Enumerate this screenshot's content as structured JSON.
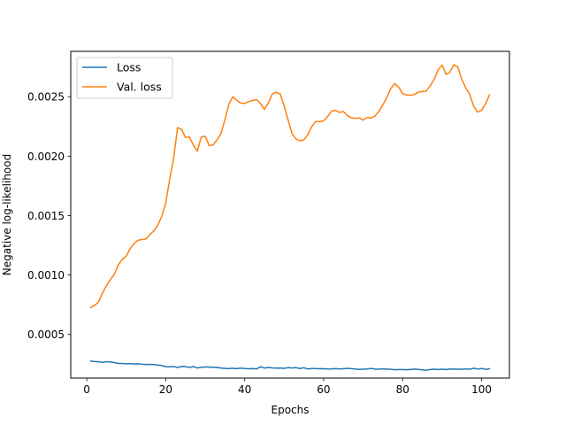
{
  "chart_data": {
    "type": "line",
    "title": "",
    "xlabel": "Epochs",
    "ylabel": "Negative log-likelihood",
    "xlim": [
      -4.05,
      107.05
    ],
    "ylim": [
      0.000133,
      0.002881
    ],
    "xticks": [
      0,
      20,
      40,
      60,
      80,
      100
    ],
    "xtick_labels": [
      "0",
      "20",
      "40",
      "60",
      "80",
      "100"
    ],
    "yticks": [
      0.0005,
      0.001,
      0.0015,
      0.002,
      0.0025
    ],
    "ytick_labels": [
      "0.0005",
      "0.0010",
      "0.0015",
      "0.0020",
      "0.0025"
    ],
    "grid": false,
    "legend_position": "upper-left",
    "x": [
      1,
      2,
      3,
      4,
      5,
      6,
      7,
      8,
      9,
      10,
      11,
      12,
      13,
      14,
      15,
      16,
      17,
      18,
      19,
      20,
      21,
      22,
      23,
      24,
      25,
      26,
      27,
      28,
      29,
      30,
      31,
      32,
      33,
      34,
      35,
      36,
      37,
      38,
      39,
      40,
      41,
      42,
      43,
      44,
      45,
      46,
      47,
      48,
      49,
      50,
      51,
      52,
      53,
      54,
      55,
      56,
      57,
      58,
      59,
      60,
      61,
      62,
      63,
      64,
      65,
      66,
      67,
      68,
      69,
      70,
      71,
      72,
      73,
      74,
      75,
      76,
      77,
      78,
      79,
      80,
      81,
      82,
      83,
      84,
      85,
      86,
      87,
      88,
      89,
      90,
      91,
      92,
      93,
      94,
      95,
      96,
      97,
      98,
      99,
      100,
      101,
      102
    ],
    "series": [
      {
        "name": "Loss",
        "color": "#1f77b4",
        "values": [
          0.000276,
          0.000272,
          0.00027,
          0.000265,
          0.000271,
          0.000268,
          0.000263,
          0.000256,
          0.000256,
          0.000252,
          0.000255,
          0.000251,
          0.000253,
          0.000249,
          0.000247,
          0.000248,
          0.000247,
          0.000243,
          0.000238,
          0.000229,
          0.000228,
          0.00023,
          0.000222,
          0.000231,
          0.00023,
          0.000222,
          0.00023,
          0.000218,
          0.000223,
          0.000227,
          0.000225,
          0.000223,
          0.000223,
          0.000217,
          0.000215,
          0.000212,
          0.000216,
          0.000212,
          0.000217,
          0.000213,
          0.000211,
          0.000213,
          0.000209,
          0.000228,
          0.000217,
          0.000222,
          0.000219,
          0.000217,
          0.000218,
          0.000215,
          0.000221,
          0.000218,
          0.000221,
          0.000213,
          0.00022,
          0.000209,
          0.000213,
          0.000213,
          0.000211,
          0.000212,
          0.000209,
          0.00021,
          0.000212,
          0.000209,
          0.000212,
          0.000215,
          0.000212,
          0.000209,
          0.000206,
          0.000208,
          0.000209,
          0.000214,
          0.000208,
          0.000207,
          0.00021,
          0.000208,
          0.000207,
          0.000203,
          0.000205,
          0.000205,
          0.000203,
          0.000206,
          0.000208,
          0.000206,
          0.000202,
          0.000199,
          0.000205,
          0.000207,
          0.000205,
          0.000207,
          0.000205,
          0.000209,
          0.000208,
          0.000207,
          0.000207,
          0.00021,
          0.000207,
          0.000216,
          0.000208,
          0.000214,
          0.000206,
          0.000212
        ]
      },
      {
        "name": "Val. loss",
        "color": "#ff7f0e",
        "values": [
          0.000726,
          0.000745,
          0.000772,
          0.00085,
          0.00091,
          0.000962,
          0.001007,
          0.001085,
          0.001131,
          0.001158,
          0.001223,
          0.001265,
          0.001293,
          0.001298,
          0.001303,
          0.00134,
          0.001372,
          0.001419,
          0.001494,
          0.001603,
          0.001804,
          0.001981,
          0.002239,
          0.002226,
          0.002156,
          0.002161,
          0.002093,
          0.002042,
          0.00216,
          0.002167,
          0.002089,
          0.002094,
          0.002137,
          0.00219,
          0.002306,
          0.002437,
          0.002499,
          0.002469,
          0.002446,
          0.002443,
          0.002459,
          0.002468,
          0.002475,
          0.002442,
          0.002393,
          0.002447,
          0.002523,
          0.002538,
          0.002521,
          0.002424,
          0.002303,
          0.002188,
          0.002144,
          0.002128,
          0.002137,
          0.002179,
          0.002249,
          0.002291,
          0.00229,
          0.002296,
          0.002332,
          0.002378,
          0.002385,
          0.002367,
          0.002375,
          0.002341,
          0.002322,
          0.002318,
          0.002322,
          0.002303,
          0.002324,
          0.002321,
          0.002337,
          0.002377,
          0.002431,
          0.002493,
          0.002568,
          0.00261,
          0.00258,
          0.002525,
          0.002514,
          0.002511,
          0.002519,
          0.002538,
          0.002543,
          0.002548,
          0.002591,
          0.002646,
          0.002727,
          0.002766,
          0.002687,
          0.002705,
          0.002769,
          0.002748,
          0.002646,
          0.002572,
          0.002521,
          0.002418,
          0.00237,
          0.002385,
          0.00244,
          0.002514
        ]
      }
    ]
  }
}
